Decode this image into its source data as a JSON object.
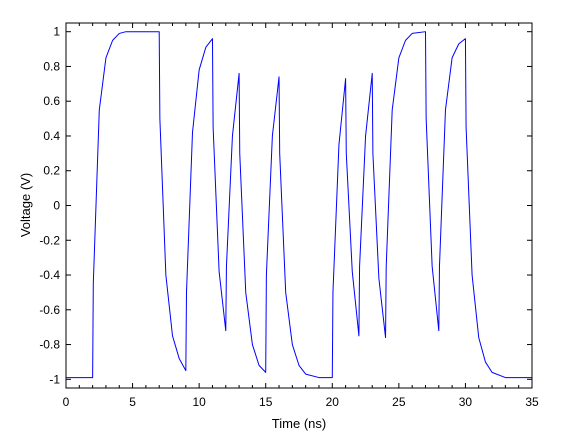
{
  "chart_data": {
    "type": "line",
    "title": "",
    "xlabel": "Time (ns)",
    "ylabel": "Voltage (V)",
    "xlim": [
      0,
      35
    ],
    "ylim": [
      -1.05,
      1.05
    ],
    "x_ticks": [
      0,
      5,
      10,
      15,
      20,
      25,
      30,
      35
    ],
    "x_tick_labels": [
      "0",
      "5",
      "10",
      "15",
      "20",
      "25",
      "30",
      "35"
    ],
    "y_ticks": [
      -1,
      -0.8,
      -0.6,
      -0.4,
      -0.2,
      0,
      0.2,
      0.4,
      0.6,
      0.8,
      1
    ],
    "y_tick_labels": [
      "-1",
      "-0.8",
      "-0.6",
      "-0.4",
      "-0.2",
      "0",
      "0.2",
      "0.4",
      "0.6",
      "0.8",
      "1"
    ],
    "x_minor_step": 1,
    "grid": false,
    "line_color": "#0000ff",
    "series": [
      {
        "x": [
          0,
          2,
          2.05,
          2.5,
          3,
          3.5,
          4,
          4.5,
          5,
          5.5,
          6,
          7,
          7.05,
          7.5,
          8,
          8.5,
          9,
          9.05,
          9.5,
          10,
          10.5,
          11,
          11.05,
          11.5,
          12,
          12.05,
          12.5,
          13,
          13.05,
          13.5,
          14,
          14.5,
          15,
          15.05,
          15.5,
          16,
          16.05,
          16.5,
          17,
          17.5,
          18,
          19,
          20,
          20.05,
          20.5,
          21,
          21.05,
          21.5,
          22,
          22.05,
          22.5,
          23,
          23.05,
          23.5,
          24,
          24.05,
          24.5,
          25,
          25.5,
          26,
          27,
          27.05,
          27.5,
          28,
          28.05,
          28.5,
          29,
          29.5,
          30,
          30.05,
          30.5,
          31,
          31.5,
          32,
          33,
          35
        ],
        "y": [
          -0.99,
          -0.99,
          -0.45,
          0.55,
          0.85,
          0.95,
          0.99,
          1,
          1,
          1,
          1,
          1,
          0.5,
          -0.4,
          -0.75,
          -0.88,
          -0.95,
          -0.5,
          0.42,
          0.78,
          0.91,
          0.96,
          0.45,
          -0.38,
          -0.72,
          -0.35,
          0.4,
          0.76,
          0.3,
          -0.5,
          -0.8,
          -0.92,
          -0.96,
          -0.4,
          0.4,
          0.74,
          0.3,
          -0.5,
          -0.8,
          -0.92,
          -0.97,
          -0.99,
          -0.99,
          -0.5,
          0.35,
          0.73,
          0.3,
          -0.38,
          -0.75,
          -0.35,
          0.4,
          0.76,
          0.3,
          -0.42,
          -0.76,
          -0.35,
          0.55,
          0.85,
          0.95,
          0.99,
          1,
          0.5,
          -0.35,
          -0.72,
          -0.35,
          0.55,
          0.85,
          0.93,
          0.96,
          0.45,
          -0.4,
          -0.76,
          -0.9,
          -0.96,
          -0.99,
          -0.99
        ]
      }
    ]
  }
}
